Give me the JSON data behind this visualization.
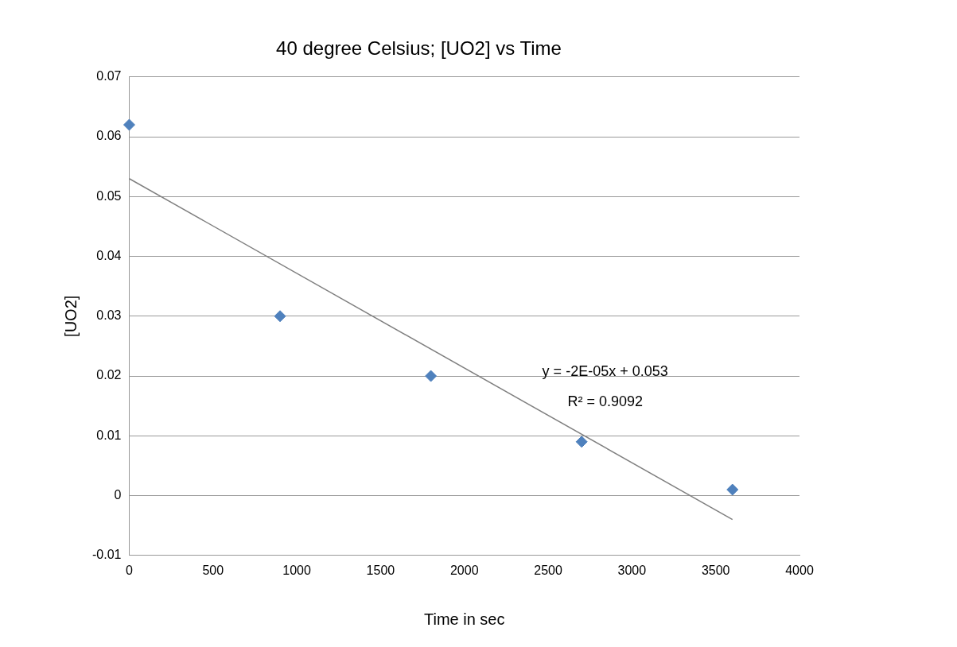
{
  "chart_data": {
    "type": "scatter",
    "title": "40 degree Celsius; [UO2] vs Time",
    "xlabel": "Time in sec",
    "ylabel": "[UO2]",
    "x": [
      0,
      900,
      1800,
      2700,
      3600
    ],
    "series": [
      {
        "type": "scatter",
        "color": "#4f81bd",
        "values": [
          0.062,
          0.03,
          0.02,
          0.009,
          0.001
        ]
      },
      {
        "type": "line",
        "color": "#7f7f7f",
        "x": [
          0,
          3600
        ],
        "values": [
          0.053,
          -0.004
        ],
        "marker": "none"
      }
    ],
    "marker": "diamond",
    "xlim": [
      0,
      4000
    ],
    "xticks": [
      0,
      500,
      1000,
      1500,
      2000,
      2500,
      3000,
      3500,
      4000
    ],
    "ylim": [
      -0.01,
      0.07
    ],
    "yticks": [
      -0.01,
      0,
      0.01,
      0.02,
      0.03,
      0.04,
      0.05,
      0.06,
      0.07
    ],
    "grid": "y",
    "legend": false,
    "annotations": [
      "y = -2E-05x + 0.053",
      "R² = 0.9092"
    ]
  }
}
